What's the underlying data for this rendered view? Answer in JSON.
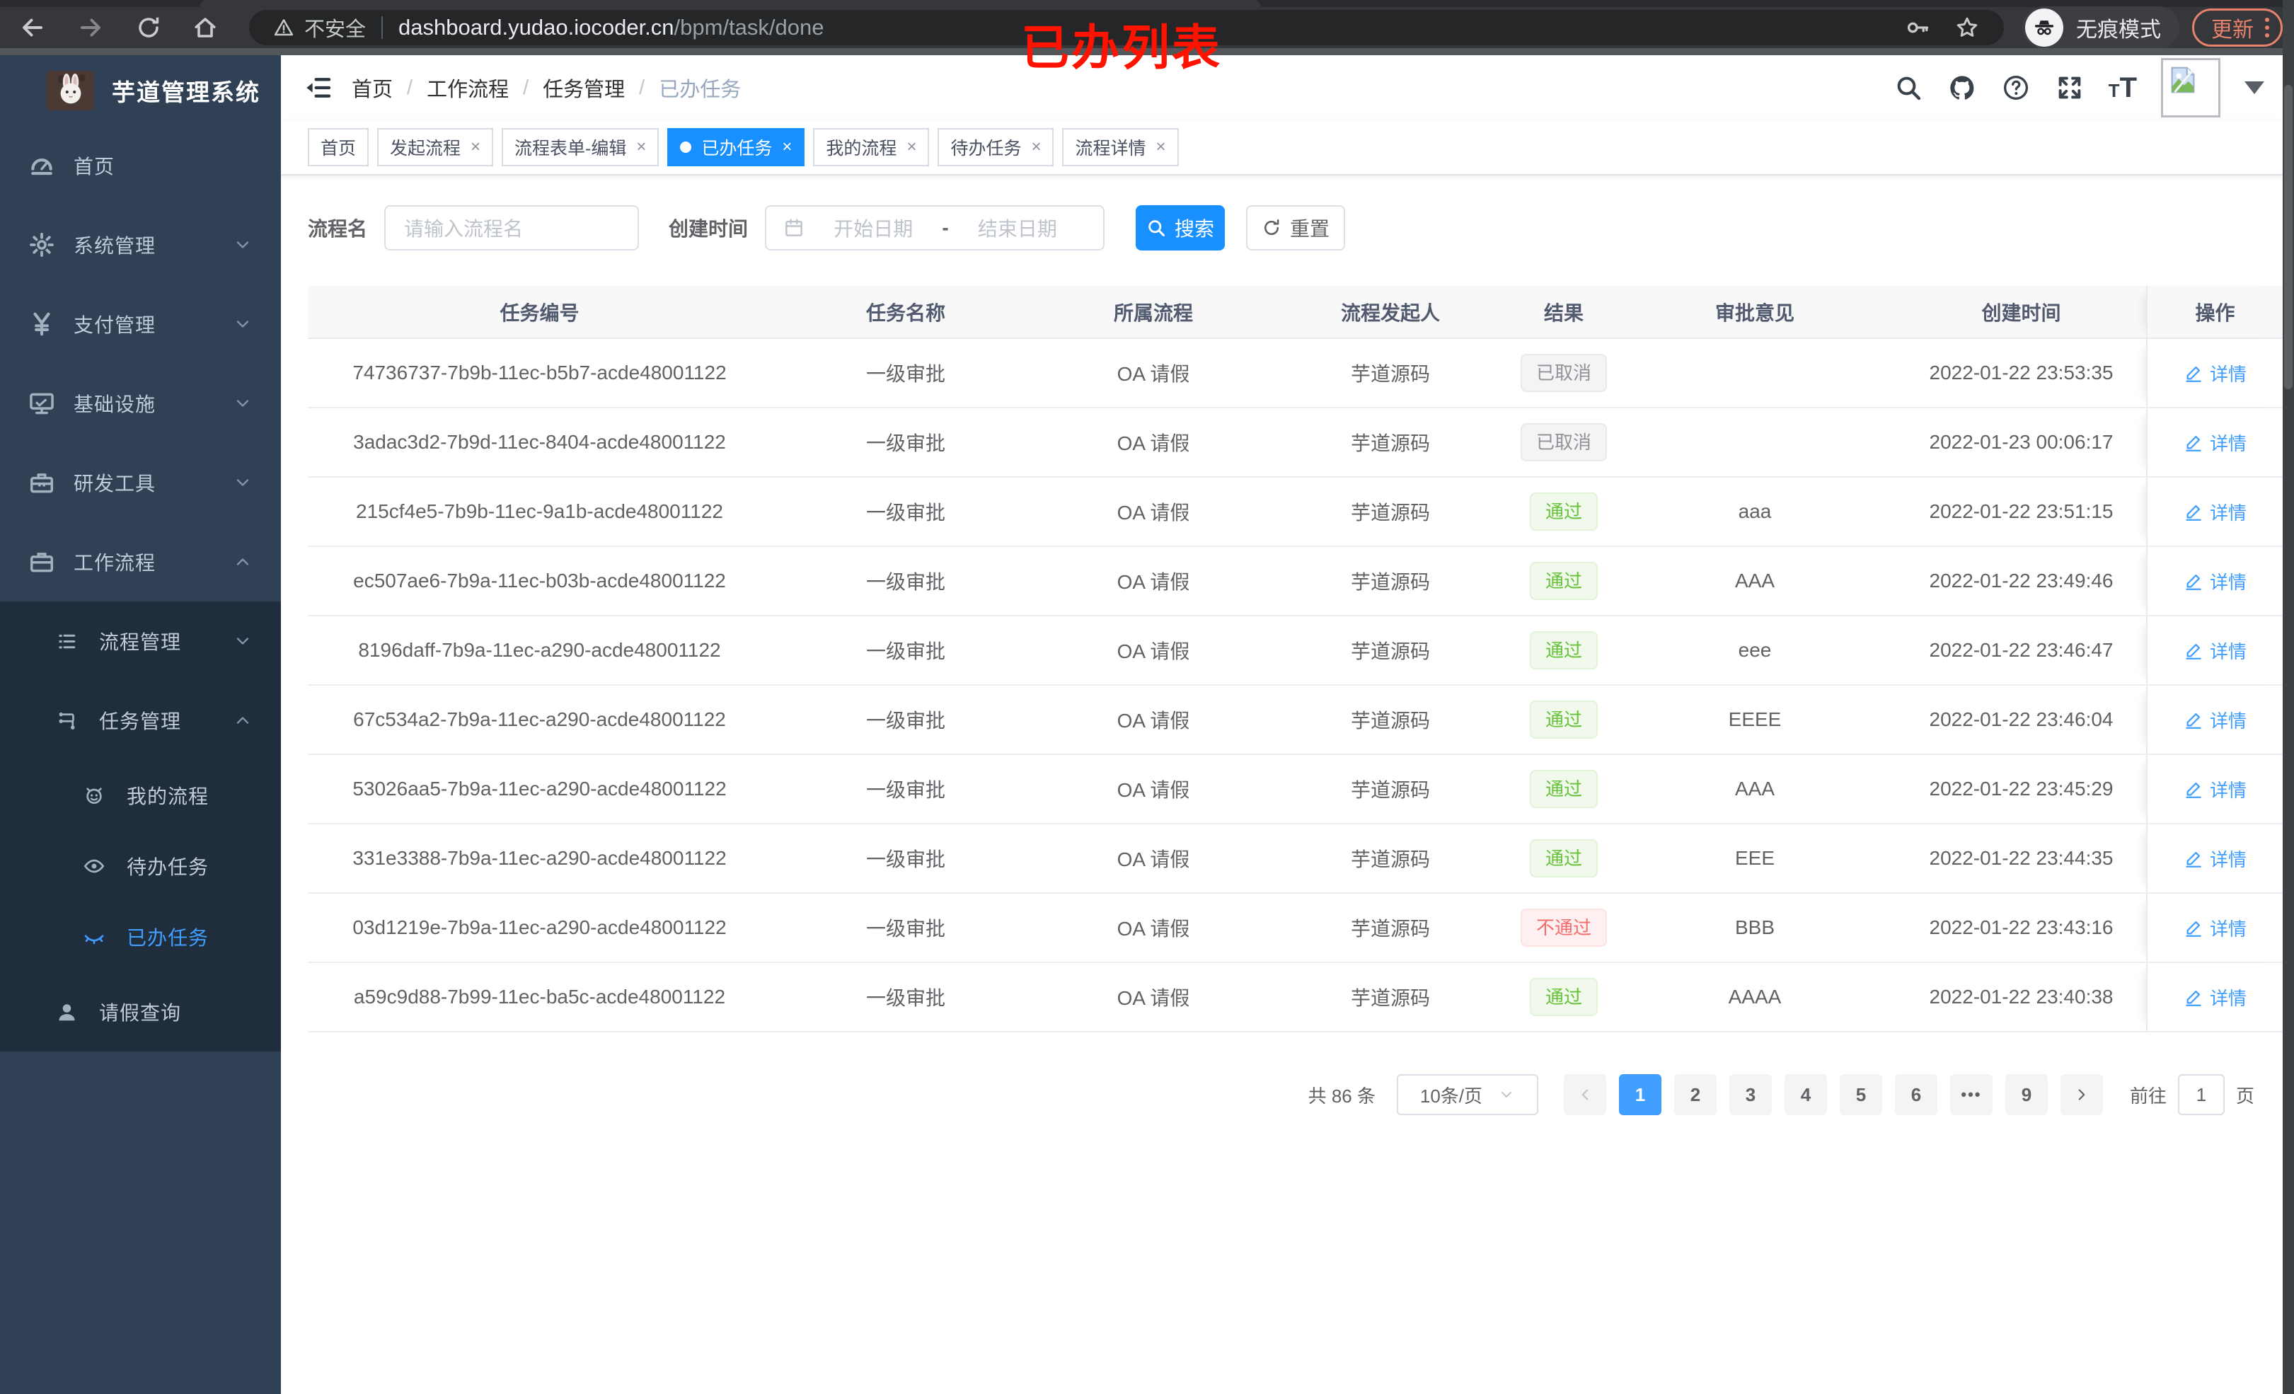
{
  "browser": {
    "security_label": "不安全",
    "url_host": "dashboard.yudao.iocoder.cn",
    "url_path": "/bpm/task/done",
    "incognito_label": "无痕模式",
    "update_label": "更新"
  },
  "annotation": {
    "text": "已办列表",
    "color": "#ff1300"
  },
  "sidebar": {
    "title": "芋道管理系统",
    "items": [
      {
        "key": "home",
        "label": "首页",
        "icon": "dashboard-icon",
        "level": 1,
        "sub": false,
        "chevron": "",
        "active": false
      },
      {
        "key": "system",
        "label": "系统管理",
        "icon": "gear-icon",
        "level": 1,
        "sub": false,
        "chevron": "down",
        "active": false
      },
      {
        "key": "payment",
        "label": "支付管理",
        "icon": "yen-icon",
        "level": 1,
        "sub": false,
        "chevron": "down",
        "active": false
      },
      {
        "key": "infra",
        "label": "基础设施",
        "icon": "monitor-icon",
        "level": 1,
        "sub": false,
        "chevron": "down",
        "active": false
      },
      {
        "key": "devtools",
        "label": "研发工具",
        "icon": "toolbox-icon",
        "level": 1,
        "sub": false,
        "chevron": "down",
        "active": false
      },
      {
        "key": "workflow",
        "label": "工作流程",
        "icon": "briefcase-icon",
        "level": 1,
        "sub": false,
        "chevron": "up",
        "active": false
      },
      {
        "key": "process-mgmt",
        "label": "流程管理",
        "icon": "list-icon",
        "level": 2,
        "sub": true,
        "chevron": "down",
        "active": false
      },
      {
        "key": "task-mgmt",
        "label": "任务管理",
        "icon": "flow-icon",
        "level": 2,
        "sub": true,
        "chevron": "up",
        "active": false
      },
      {
        "key": "my-process",
        "label": "我的流程",
        "icon": "robot-icon",
        "level": 3,
        "sub": true,
        "chevron": "",
        "active": false
      },
      {
        "key": "todo-tasks",
        "label": "待办任务",
        "icon": "eye-open-icon",
        "level": 3,
        "sub": true,
        "chevron": "",
        "active": false
      },
      {
        "key": "done-tasks",
        "label": "已办任务",
        "icon": "eye-closed-icon",
        "level": 3,
        "sub": true,
        "chevron": "",
        "active": true
      },
      {
        "key": "leave-query",
        "label": "请假查询",
        "icon": "user-icon",
        "level": 2,
        "sub": true,
        "chevron": "",
        "active": false
      }
    ]
  },
  "header": {
    "breadcrumb": [
      "首页",
      "工作流程",
      "任务管理",
      "已办任务"
    ]
  },
  "tabs": [
    {
      "key": "home",
      "label": "首页",
      "closable": false,
      "active": false
    },
    {
      "key": "start-process",
      "label": "发起流程",
      "closable": true,
      "active": false
    },
    {
      "key": "form-edit",
      "label": "流程表单-编辑",
      "closable": true,
      "active": false
    },
    {
      "key": "done-tasks",
      "label": "已办任务",
      "closable": true,
      "active": true
    },
    {
      "key": "my-process",
      "label": "我的流程",
      "closable": true,
      "active": false
    },
    {
      "key": "todo-tasks",
      "label": "待办任务",
      "closable": true,
      "active": false
    },
    {
      "key": "process-detail",
      "label": "流程详情",
      "closable": true,
      "active": false
    }
  ],
  "filters": {
    "name_label": "流程名",
    "name_placeholder": "请输入流程名",
    "date_label": "创建时间",
    "date_start_placeholder": "开始日期",
    "date_separator": "-",
    "date_end_placeholder": "结束日期",
    "search_label": "搜索",
    "reset_label": "重置"
  },
  "table": {
    "columns": [
      "任务编号",
      "任务名称",
      "所属流程",
      "流程发起人",
      "结果",
      "审批意见",
      "创建时间",
      "操作"
    ],
    "detail_label": "详情",
    "rows": [
      {
        "id": "74736737-7b9b-11ec-b5b7-acde48001122",
        "name": "一级审批",
        "process": "OA 请假",
        "starter": "芋道源码",
        "result": "已取消",
        "result_type": "info",
        "comment": "",
        "created": "2022-01-22 23:53:35"
      },
      {
        "id": "3adac3d2-7b9d-11ec-8404-acde48001122",
        "name": "一级审批",
        "process": "OA 请假",
        "starter": "芋道源码",
        "result": "已取消",
        "result_type": "info",
        "comment": "",
        "created": "2022-01-23 00:06:17"
      },
      {
        "id": "215cf4e5-7b9b-11ec-9a1b-acde48001122",
        "name": "一级审批",
        "process": "OA 请假",
        "starter": "芋道源码",
        "result": "通过",
        "result_type": "success",
        "comment": "aaa",
        "created": "2022-01-22 23:51:15"
      },
      {
        "id": "ec507ae6-7b9a-11ec-b03b-acde48001122",
        "name": "一级审批",
        "process": "OA 请假",
        "starter": "芋道源码",
        "result": "通过",
        "result_type": "success",
        "comment": "AAA",
        "created": "2022-01-22 23:49:46"
      },
      {
        "id": "8196daff-7b9a-11ec-a290-acde48001122",
        "name": "一级审批",
        "process": "OA 请假",
        "starter": "芋道源码",
        "result": "通过",
        "result_type": "success",
        "comment": "eee",
        "created": "2022-01-22 23:46:47"
      },
      {
        "id": "67c534a2-7b9a-11ec-a290-acde48001122",
        "name": "一级审批",
        "process": "OA 请假",
        "starter": "芋道源码",
        "result": "通过",
        "result_type": "success",
        "comment": "EEEE",
        "created": "2022-01-22 23:46:04"
      },
      {
        "id": "53026aa5-7b9a-11ec-a290-acde48001122",
        "name": "一级审批",
        "process": "OA 请假",
        "starter": "芋道源码",
        "result": "通过",
        "result_type": "success",
        "comment": "AAA",
        "created": "2022-01-22 23:45:29"
      },
      {
        "id": "331e3388-7b9a-11ec-a290-acde48001122",
        "name": "一级审批",
        "process": "OA 请假",
        "starter": "芋道源码",
        "result": "通过",
        "result_type": "success",
        "comment": "EEE",
        "created": "2022-01-22 23:44:35"
      },
      {
        "id": "03d1219e-7b9a-11ec-a290-acde48001122",
        "name": "一级审批",
        "process": "OA 请假",
        "starter": "芋道源码",
        "result": "不通过",
        "result_type": "danger",
        "comment": "BBB",
        "created": "2022-01-22 23:43:16"
      },
      {
        "id": "a59c9d88-7b99-11ec-ba5c-acde48001122",
        "name": "一级审批",
        "process": "OA 请假",
        "starter": "芋道源码",
        "result": "通过",
        "result_type": "success",
        "comment": "AAAA",
        "created": "2022-01-22 23:40:38"
      }
    ]
  },
  "pagination": {
    "total_label": "共 86 条",
    "page_size_label": "10条/页",
    "pages": [
      "1",
      "2",
      "3",
      "4",
      "5",
      "6",
      "•••",
      "9"
    ],
    "active_page": "1",
    "goto_label": "前往",
    "goto_value": "1",
    "page_suffix_label": "页"
  },
  "colors": {
    "primary": "#1890ff",
    "link": "#409eff",
    "sidebar_bg": "#304156",
    "submenu_bg": "#1f2d3d",
    "tag_success": "#67c23a",
    "tag_danger": "#f56c6c",
    "tag_info": "#909399"
  }
}
